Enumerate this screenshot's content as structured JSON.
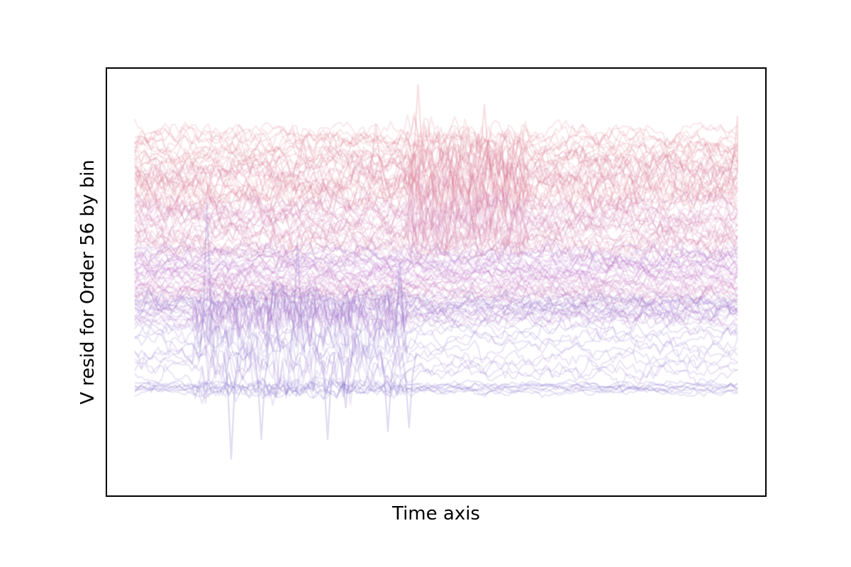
{
  "chart_data": {
    "type": "line",
    "title": "",
    "xlabel": "Time axis",
    "ylabel": "V resid for Order 56 by bin",
    "xticks": "none",
    "yticks": "none",
    "grid": false,
    "legend": "none",
    "n_points": 180,
    "line_opacity": 0.15,
    "colormap": {
      "description": "series colored by bin, from lavender (lower traces) through violet to pink (upper traces)",
      "start": "#7b68c8",
      "middle": "#c276c9",
      "end": "#e07a8a"
    },
    "bands": [
      {
        "name_hint": "top-pink",
        "count": 14,
        "base_start": 0.88,
        "base_end": 0.8,
        "noise": 0.012,
        "color_t": [
          0.97,
          1.0
        ]
      },
      {
        "name_hint": "pink",
        "count": 22,
        "base_start": 0.8,
        "base_end": 0.7,
        "noise": 0.018,
        "color_t": [
          0.85,
          0.97
        ]
      },
      {
        "name_hint": "pink-magenta",
        "count": 24,
        "base_start": 0.7,
        "base_end": 0.58,
        "noise": 0.014,
        "color_t": [
          0.65,
          0.85
        ]
      },
      {
        "name_hint": "violet",
        "count": 34,
        "base_start": 0.58,
        "base_end": 0.46,
        "noise": 0.01,
        "color_t": [
          0.35,
          0.65
        ]
      },
      {
        "name_hint": "lavender",
        "count": 20,
        "base_start": 0.46,
        "base_end": 0.4,
        "noise": 0.01,
        "color_t": [
          0.15,
          0.35
        ]
      },
      {
        "name_hint": "lower-lavender",
        "count": 10,
        "base_start": 0.38,
        "base_end": 0.26,
        "noise": 0.01,
        "color_t": [
          0.05,
          0.15
        ]
      },
      {
        "name_hint": "bottom",
        "count": 8,
        "base_start": 0.24,
        "base_end": 0.22,
        "noise": 0.004,
        "color_t": [
          0.0,
          0.05
        ]
      }
    ],
    "spikes": [
      {
        "x": 0.12,
        "y": 0.7,
        "t": 0.05
      },
      {
        "x": 0.16,
        "y": 0.05,
        "t": 0.02
      },
      {
        "x": 0.18,
        "y": 0.3,
        "t": 0.03
      },
      {
        "x": 0.21,
        "y": 0.1,
        "t": 0.02
      },
      {
        "x": 0.23,
        "y": 0.5,
        "t": 0.03
      },
      {
        "x": 0.27,
        "y": 0.6,
        "t": 0.06
      },
      {
        "x": 0.28,
        "y": 0.86,
        "t": 0.9
      },
      {
        "x": 0.32,
        "y": 0.1,
        "t": 0.03
      },
      {
        "x": 0.35,
        "y": 0.18,
        "t": 0.02
      },
      {
        "x": 0.4,
        "y": 0.9,
        "t": 0.92
      },
      {
        "x": 0.42,
        "y": 0.12,
        "t": 0.03
      },
      {
        "x": 0.44,
        "y": 0.55,
        "t": 0.06
      },
      {
        "x": 0.455,
        "y": 0.13,
        "t": 0.03
      },
      {
        "x": 0.47,
        "y": 1.0,
        "t": 0.96
      },
      {
        "x": 0.52,
        "y": 0.82,
        "t": 0.9
      },
      {
        "x": 0.53,
        "y": 0.85,
        "t": 0.92
      },
      {
        "x": 0.58,
        "y": 0.95,
        "t": 0.93
      },
      {
        "x": 0.63,
        "y": 0.82,
        "t": 0.9
      },
      {
        "x": 1.0,
        "y": 0.92,
        "t": 0.98
      }
    ],
    "xlim": [
      0,
      1
    ],
    "ylim": [
      0,
      1
    ]
  }
}
